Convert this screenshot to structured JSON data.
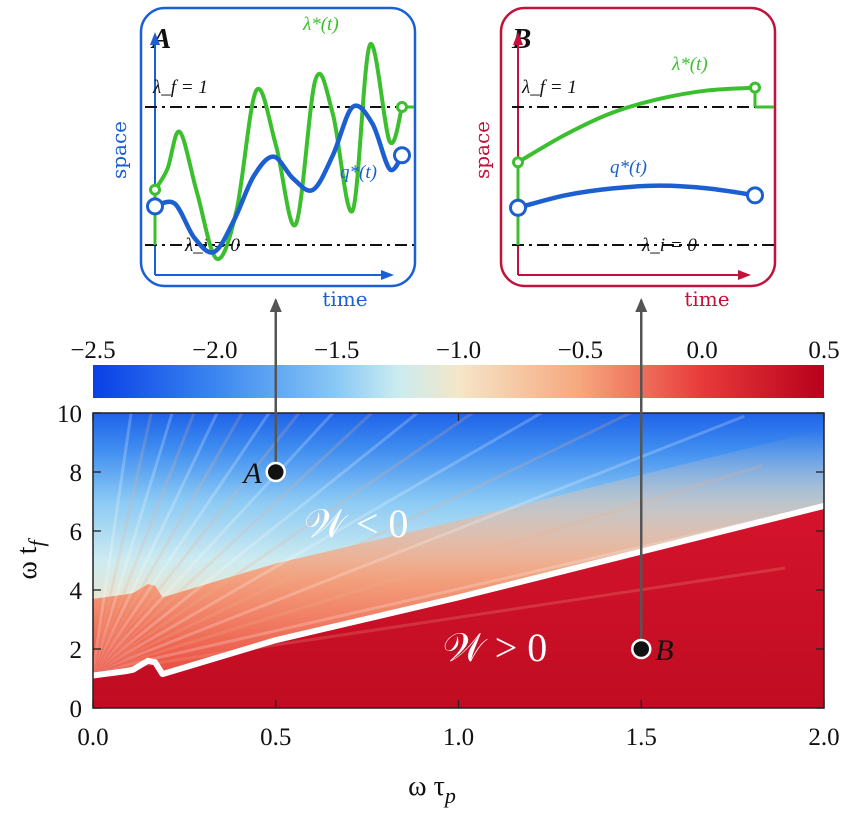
{
  "chart_data": [
    {
      "type": "heatmap",
      "title": "",
      "xlabel": "ω τ",
      "xlabel_sub": "p",
      "ylabel": "ω t",
      "ylabel_sub": "f",
      "xlim": [
        0.0,
        2.0
      ],
      "ylim": [
        0,
        10
      ],
      "x_ticks": [
        "0.0",
        "0.5",
        "1.0",
        "1.5",
        "2.0"
      ],
      "y_ticks": [
        "0",
        "2",
        "4",
        "6",
        "8",
        "10"
      ],
      "colorbar": {
        "range": [
          -2.5,
          0.5
        ],
        "ticks": [
          "−2.5",
          "−2.0",
          "−1.5",
          "−1.0",
          "−0.5",
          "0.0",
          "0.5"
        ],
        "stops": [
          {
            "value": -2.5,
            "color": "#0a3fe6"
          },
          {
            "value": -2.0,
            "color": "#3a86f0"
          },
          {
            "value": -1.5,
            "color": "#8ac8f5"
          },
          {
            "value": -1.25,
            "color": "#c9ecf0"
          },
          {
            "value": -1.0,
            "color": "#f5e6c8"
          },
          {
            "value": -0.5,
            "color": "#f6a77e"
          },
          {
            "value": 0.0,
            "color": "#e83a3a"
          },
          {
            "value": 0.5,
            "color": "#b8001c"
          }
        ]
      },
      "boundary_curve": {
        "label": "W = 0",
        "x": [
          0.0,
          0.03,
          0.06,
          0.09,
          0.11,
          0.13,
          0.15,
          0.17,
          0.19,
          0.5,
          1.0,
          1.5,
          2.0
        ],
        "y": [
          1.1,
          1.15,
          1.2,
          1.25,
          1.3,
          1.45,
          1.6,
          1.55,
          1.15,
          2.3,
          3.75,
          5.3,
          6.85
        ]
      },
      "regions": [
        {
          "label": "𝒲 < 0",
          "x": 0.72,
          "y": 5.8
        },
        {
          "label": "𝒲 > 0",
          "x": 1.1,
          "y": 1.6
        }
      ],
      "points": [
        {
          "name": "A",
          "x": 0.5,
          "y": 8.0
        },
        {
          "name": "B",
          "x": 1.5,
          "y": 2.0
        }
      ]
    },
    {
      "type": "line",
      "title": "A",
      "xlabel": "time",
      "ylabel": "space",
      "levels": [
        {
          "label": "λ_f = 1",
          "value": 1.0
        },
        {
          "label": "λ_i = 0",
          "value": 0.0
        }
      ],
      "series": [
        {
          "name": "λ*(t)",
          "color": "#3cbf2e",
          "x": [
            0.0,
            0.05,
            0.1,
            0.17,
            0.25,
            0.33,
            0.41,
            0.49,
            0.57,
            0.65,
            0.72,
            0.8,
            0.87,
            0.95,
            1.0
          ],
          "y": [
            0.4,
            0.55,
            0.82,
            0.38,
            -0.1,
            0.25,
            1.12,
            0.72,
            0.15,
            1.2,
            0.95,
            0.25,
            1.45,
            0.75,
            1.0
          ]
        },
        {
          "name": "q*(t)",
          "color": "#1c5fd0",
          "x": [
            0.0,
            0.08,
            0.16,
            0.24,
            0.32,
            0.4,
            0.48,
            0.56,
            0.64,
            0.72,
            0.8,
            0.88,
            0.95,
            1.0
          ],
          "y": [
            0.28,
            0.3,
            0.05,
            -0.05,
            0.18,
            0.5,
            0.64,
            0.48,
            0.4,
            0.65,
            1.0,
            0.88,
            0.55,
            0.65
          ]
        }
      ]
    },
    {
      "type": "line",
      "title": "B",
      "xlabel": "time",
      "ylabel": "space",
      "levels": [
        {
          "label": "λ_f = 1",
          "value": 1.0
        },
        {
          "label": "λ_i = 0",
          "value": 0.0
        }
      ],
      "series": [
        {
          "name": "λ*(t)",
          "color": "#3cbf2e",
          "x": [
            0.0,
            0.2,
            0.4,
            0.6,
            0.8,
            1.0
          ],
          "y": [
            0.6,
            0.8,
            0.96,
            1.06,
            1.12,
            1.14
          ]
        },
        {
          "name": "q*(t)",
          "color": "#1c5fd0",
          "x": [
            0.0,
            0.2,
            0.4,
            0.6,
            0.8,
            1.0
          ],
          "y": [
            0.27,
            0.36,
            0.41,
            0.43,
            0.41,
            0.36
          ]
        }
      ]
    }
  ]
}
